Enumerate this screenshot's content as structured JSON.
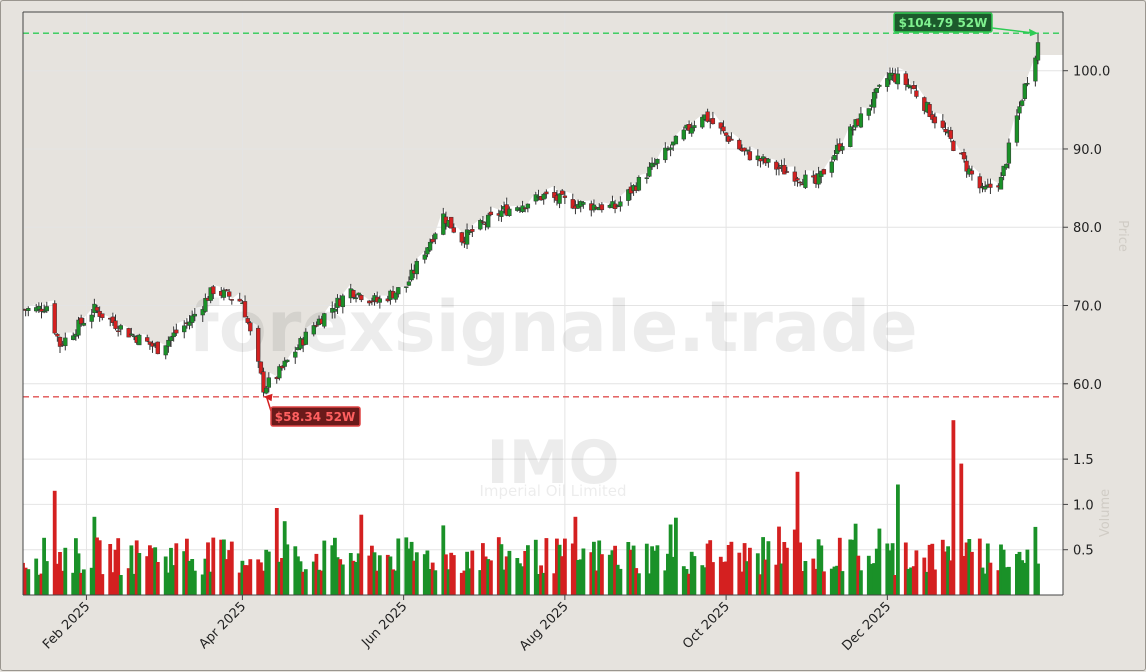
{
  "watermark": "forexsignale.trade",
  "symbol": "IMO",
  "company": "Imperial Oil Limited",
  "ylabel_price": "Price",
  "ylabel_volume": "Volume",
  "colors": {
    "up": "#1a9128",
    "down": "#d42020",
    "high_line": "#2ecc55",
    "low_line": "#e05050",
    "plot_bg": "#ffffff",
    "shade": "#e6e3de"
  },
  "annotations": {
    "high_label": "$104.79 52W",
    "low_label": "$58.34 52W"
  },
  "chart_data": [
    {
      "type": "candlestick",
      "title": "",
      "x_ticks": [
        "Feb 2025",
        "Apr 2025",
        "Jun 2025",
        "Aug 2025",
        "Oct 2025",
        "Dec 2025"
      ],
      "x_tick_dates": [
        "2025-02-01",
        "2025-04-01",
        "2025-06-01",
        "2025-08-01",
        "2025-10-01",
        "2025-12-01"
      ],
      "ylim": [
        55.5,
        107.5
      ],
      "y_ticks": [
        "60.0",
        "70.0",
        "80.0",
        "90.0",
        "100.0"
      ],
      "high_52w": 104.79,
      "low_52w": 58.34,
      "series": [
        {
          "name": "OHLC",
          "anchor_dates": [
            "2025-01-13",
            "2025-01-17",
            "2025-01-22",
            "2025-02-04",
            "2025-02-17",
            "2025-02-28",
            "2025-03-12",
            "2025-03-21",
            "2025-04-01",
            "2025-04-09",
            "2025-04-14",
            "2025-04-28",
            "2025-05-12",
            "2025-05-22",
            "2025-06-02",
            "2025-06-16",
            "2025-06-23",
            "2025-07-08",
            "2025-07-24",
            "2025-08-05",
            "2025-08-20",
            "2025-09-04",
            "2025-09-22",
            "2025-09-30",
            "2025-10-08",
            "2025-10-21",
            "2025-11-04",
            "2025-11-12",
            "2025-11-21",
            "2025-12-02",
            "2025-12-10",
            "2025-12-25",
            "2026-01-06",
            "2026-01-13",
            "2026-01-22",
            "2026-01-27"
          ],
          "anchor_closes": [
            69.5,
            70.0,
            65.0,
            69.5,
            66.5,
            64.5,
            68.0,
            72.0,
            70.5,
            59.5,
            61.0,
            67.5,
            72.0,
            70.5,
            72.5,
            81.5,
            78.5,
            82.0,
            84.0,
            83.0,
            82.5,
            88.0,
            94.5,
            92.0,
            89.5,
            87.5,
            85.5,
            90.0,
            94.0,
            99.5,
            98.0,
            91.0,
            84.5,
            86.0,
            98.0,
            103.5
          ]
        }
      ]
    },
    {
      "type": "bar",
      "title": "",
      "ylabel": "Volume",
      "y_ticks": [
        "0.5",
        "1.0",
        "1.5"
      ],
      "ylim": [
        0,
        1.7
      ],
      "peaks": [
        {
          "date": "2025-01-20",
          "value": 1.15
        },
        {
          "date": "2025-04-14",
          "value": 0.96
        },
        {
          "date": "2025-10-28",
          "value": 1.36
        },
        {
          "date": "2025-12-05",
          "value": 1.22
        },
        {
          "date": "2025-12-26",
          "value": 1.93
        },
        {
          "date": "2025-12-29",
          "value": 1.45
        }
      ]
    }
  ]
}
